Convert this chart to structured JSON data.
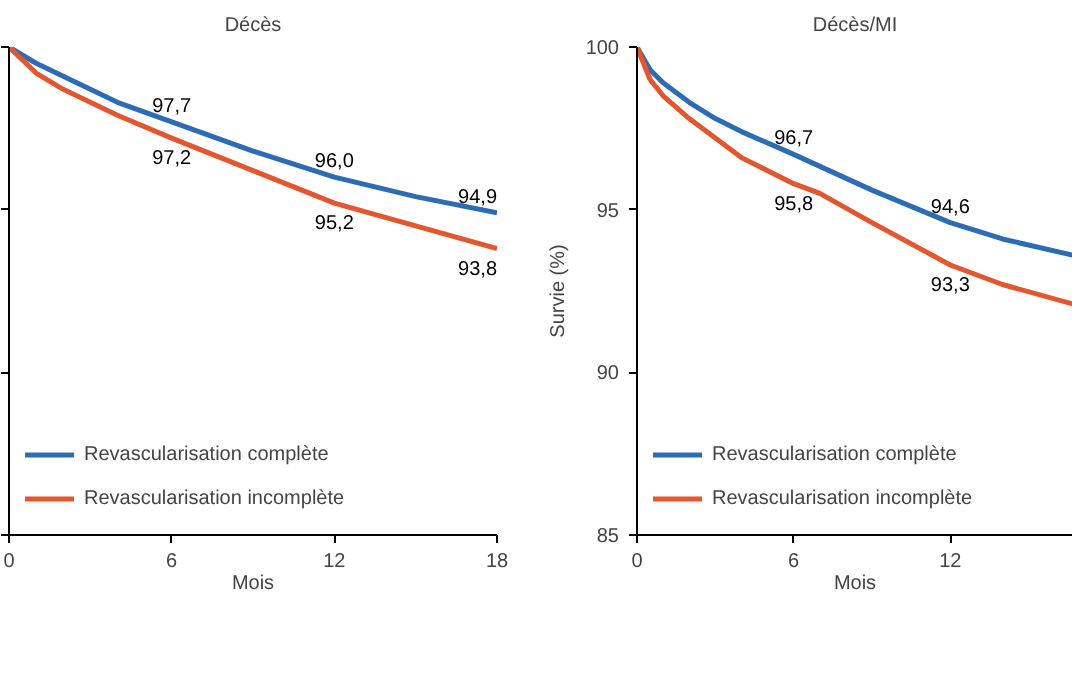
{
  "chart_data": [
    {
      "type": "line",
      "title": "Décès",
      "xlabel": "Mois",
      "xlim": [
        0,
        18
      ],
      "xticks": [
        0,
        6,
        12,
        18
      ],
      "ylim": [
        85,
        100
      ],
      "yticks": [
        {
          "value": 85,
          "label": null
        },
        {
          "value": 90,
          "label": null
        },
        {
          "value": 95,
          "label": null
        },
        {
          "value": 100,
          "label": null
        }
      ],
      "tick_labels": "x",
      "grid": false,
      "legend": "bottom left",
      "x": [
        0,
        1,
        2,
        3,
        4,
        6,
        9,
        12,
        15,
        18
      ],
      "series": [
        {
          "name": "Revascularisation complète",
          "color": "#2b6cb4",
          "values": [
            100,
            99.5,
            99.1,
            98.7,
            98.3,
            97.7,
            96.8,
            96.0,
            95.4,
            94.9
          ]
        },
        {
          "name": "Revascularisation incomplète",
          "color": "#e4572e",
          "values": [
            100,
            99.2,
            98.7,
            98.3,
            97.9,
            97.2,
            96.2,
            95.2,
            94.5,
            93.8
          ]
        }
      ],
      "annotations": [
        {
          "text": "97,7",
          "x": 6,
          "y": 97.7
        },
        {
          "text": "97,2",
          "x": 6,
          "y": 97.2
        },
        {
          "text": "96,0",
          "x": 12,
          "y": 96.0
        },
        {
          "text": "95,2",
          "x": 12,
          "y": 95.2
        },
        {
          "text": "94,9",
          "x": 18,
          "y": 94.9
        },
        {
          "text": "93,8",
          "x": 18,
          "y": 93.8
        }
      ]
    },
    {
      "type": "line",
      "title": "Décès/MI",
      "xlabel": "Mois",
      "ylabel": "Survie (%)",
      "xlim": [
        0,
        16.7
      ],
      "xticks": [
        0,
        6,
        12
      ],
      "ylim": [
        85,
        100
      ],
      "yticks": [
        85,
        90,
        95,
        100
      ],
      "grid": false,
      "legend": "bottom left",
      "series": [
        {
          "name": "Revascularisation complète",
          "color": "#2b6cb4",
          "x": [
            0,
            0.5,
            1,
            2,
            3,
            4,
            6,
            9,
            12,
            14,
            16.7
          ],
          "values": [
            100,
            99.3,
            98.9,
            98.3,
            97.8,
            97.4,
            96.7,
            95.6,
            94.6,
            94.1,
            93.6
          ]
        },
        {
          "name": "Revascularisation incomplète",
          "color": "#e4572e",
          "x": [
            0,
            0.5,
            1,
            2,
            3,
            4,
            6,
            7,
            9,
            12,
            14,
            16.7
          ],
          "values": [
            100,
            99.0,
            98.5,
            97.8,
            97.2,
            96.6,
            95.8,
            95.5,
            94.6,
            93.3,
            92.7,
            92.1
          ]
        }
      ],
      "annotations": [
        {
          "text": "96,7",
          "x": 6,
          "y": 96.7
        },
        {
          "text": "95,8",
          "x": 6,
          "y": 95.8
        },
        {
          "text": "94,6",
          "x": 12,
          "y": 94.6
        },
        {
          "text": "93,3",
          "x": 12,
          "y": 93.3
        }
      ]
    }
  ]
}
